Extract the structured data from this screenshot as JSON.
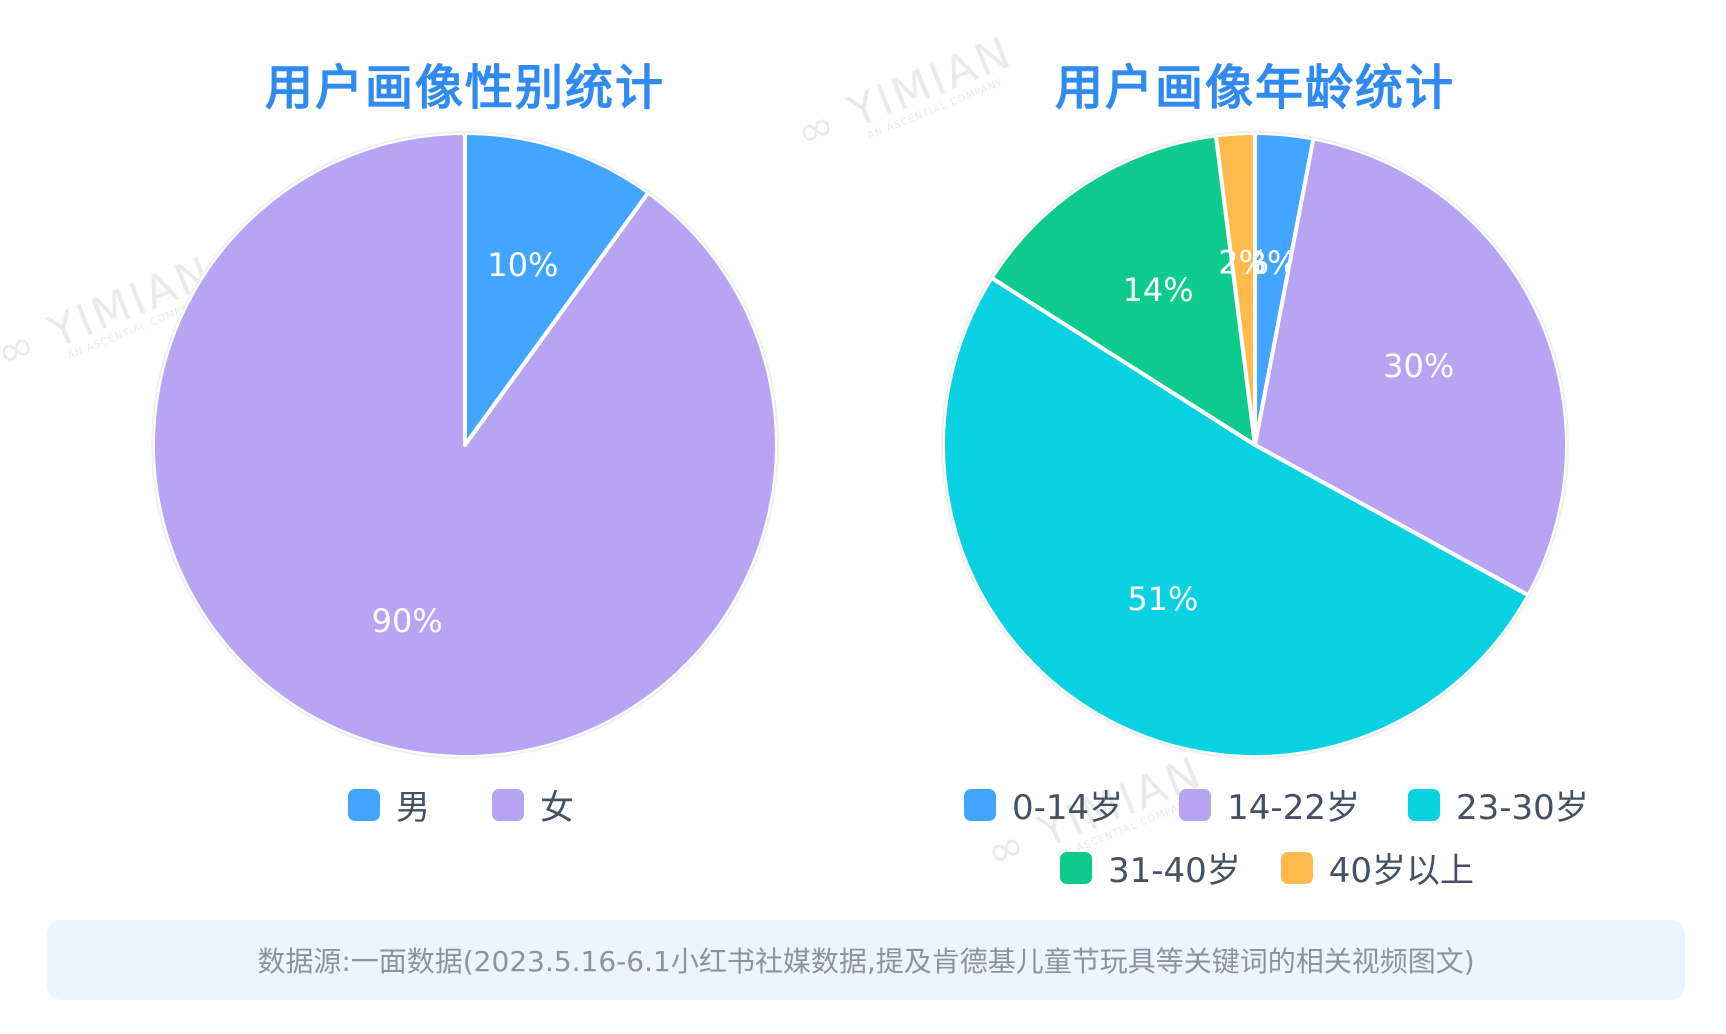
{
  "chart_data": [
    {
      "type": "pie",
      "title": "用户画像性别统计",
      "slices": [
        {
          "label": "男",
          "value": 10,
          "text": "10%",
          "color": "#42a5ff"
        },
        {
          "label": "女",
          "value": 90,
          "text": "90%",
          "color": "#b7a4f2"
        }
      ]
    },
    {
      "type": "pie",
      "title": "用户画像年龄统计",
      "slices": [
        {
          "label": "0-14岁",
          "value": 3,
          "text": "3%",
          "color": "#42a5ff"
        },
        {
          "label": "14-22岁",
          "value": 30,
          "text": "30%",
          "color": "#b7a4f2"
        },
        {
          "label": "23-30岁",
          "value": 51,
          "text": "51%",
          "color": "#08d2e2"
        },
        {
          "label": "31-40岁",
          "value": 14,
          "text": "14%",
          "color": "#0ccb8c"
        },
        {
          "label": "40岁以上",
          "value": 2,
          "text": "2%",
          "color": "#ffba4c"
        }
      ]
    }
  ],
  "footer": {
    "source": "数据源:一面数据(2023.5.16-6.1小红书社媒数据,提及肯德基儿童节玩具等关键词的相关视频图文)"
  }
}
